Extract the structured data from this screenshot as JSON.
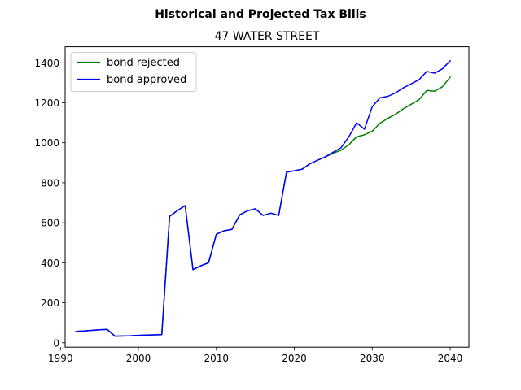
{
  "chart_data": {
    "type": "line",
    "suptitle": "Historical and Projected Tax Bills",
    "title": "47 WATER STREET",
    "xlabel": "",
    "ylabel": "",
    "xlim": [
      1990.6,
      2042.4
    ],
    "ylim": [
      -22,
      1480
    ],
    "xticks": [
      1990,
      2000,
      2010,
      2020,
      2030,
      2040
    ],
    "yticks": [
      0,
      200,
      400,
      600,
      800,
      1000,
      1200,
      1400
    ],
    "grid": false,
    "legend_position": "top-left",
    "series": [
      {
        "name": "bond rejected",
        "color": "#008000",
        "x": [
          1992,
          1993,
          1994,
          1995,
          1996,
          1997,
          1998,
          1999,
          2000,
          2001,
          2002,
          2003,
          2004,
          2005,
          2006,
          2007,
          2008,
          2009,
          2010,
          2011,
          2012,
          2013,
          2014,
          2015,
          2016,
          2017,
          2018,
          2019,
          2020,
          2021,
          2022,
          2023,
          2024,
          2025,
          2026,
          2027,
          2028,
          2029,
          2030,
          2031,
          2032,
          2033,
          2034,
          2035,
          2036,
          2037,
          2038,
          2039,
          2040
        ],
        "y": [
          57,
          59,
          62,
          65,
          67,
          33,
          34,
          35,
          37,
          39,
          40,
          41,
          632,
          661,
          686,
          366,
          385,
          400,
          543,
          560,
          567,
          640,
          660,
          670,
          637,
          648,
          637,
          853,
          860,
          868,
          895,
          913,
          930,
          948,
          963,
          990,
          1030,
          1040,
          1058,
          1098,
          1122,
          1143,
          1170,
          1193,
          1215,
          1262,
          1258,
          1280,
          1328
        ]
      },
      {
        "name": "bond approved",
        "color": "#0000ff",
        "x": [
          1992,
          1993,
          1994,
          1995,
          1996,
          1997,
          1998,
          1999,
          2000,
          2001,
          2002,
          2003,
          2004,
          2005,
          2006,
          2007,
          2008,
          2009,
          2010,
          2011,
          2012,
          2013,
          2014,
          2015,
          2016,
          2017,
          2018,
          2019,
          2020,
          2021,
          2022,
          2023,
          2024,
          2025,
          2026,
          2027,
          2028,
          2029,
          2030,
          2031,
          2032,
          2033,
          2034,
          2035,
          2036,
          2037,
          2038,
          2039,
          2040
        ],
        "y": [
          57,
          59,
          62,
          65,
          67,
          33,
          34,
          35,
          37,
          39,
          40,
          41,
          632,
          661,
          686,
          366,
          385,
          400,
          543,
          560,
          567,
          640,
          660,
          670,
          637,
          648,
          637,
          853,
          860,
          868,
          895,
          913,
          930,
          953,
          975,
          1030,
          1100,
          1068,
          1180,
          1225,
          1232,
          1250,
          1275,
          1295,
          1315,
          1357,
          1348,
          1370,
          1410
        ]
      }
    ]
  }
}
